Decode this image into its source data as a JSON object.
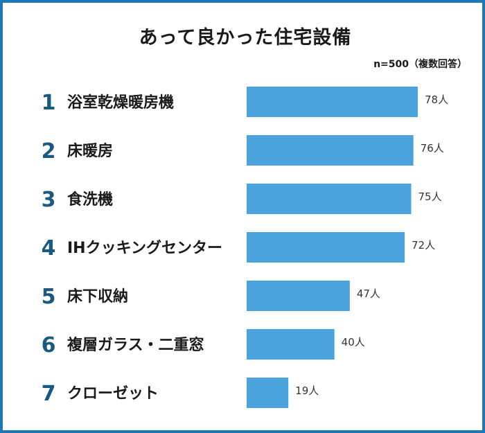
{
  "chart_data": {
    "type": "bar",
    "orientation": "horizontal",
    "title": "あって良かった住宅設備",
    "note": "n=500（複数回答）",
    "ranks": [
      "1",
      "2",
      "3",
      "4",
      "5",
      "6",
      "7"
    ],
    "categories": [
      "浴室乾燥暖房機",
      "床暖房",
      "食洗機",
      "IHクッキングセンター",
      "床下収納",
      "複層ガラス・二重窓",
      "クローゼット"
    ],
    "values": [
      78,
      76,
      75,
      72,
      47,
      40,
      19
    ],
    "value_labels": [
      "78人",
      "76人",
      "75人",
      "72人",
      "47人",
      "40人",
      "19人"
    ],
    "unit": "人",
    "xlim": [
      0,
      78
    ],
    "grid": false,
    "legend": "none",
    "colors": {
      "bar": "#4aa3dc",
      "rank": "#1b5a80",
      "frame": "#1f78b4"
    }
  }
}
